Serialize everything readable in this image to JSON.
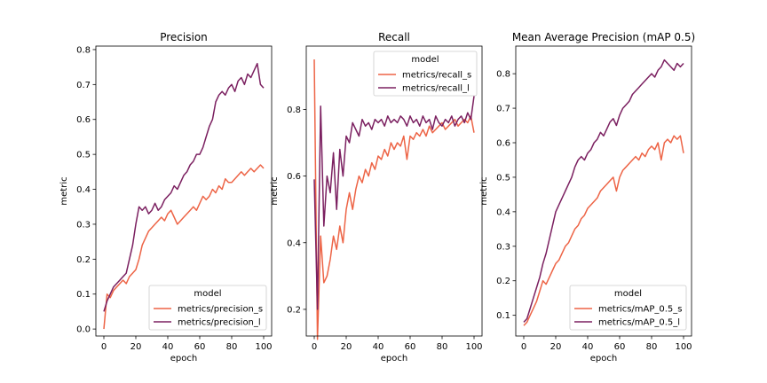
{
  "colors": {
    "small": "#ed6446",
    "large": "#7b2060"
  },
  "legend_title": "model",
  "chart_data": [
    {
      "type": "line",
      "title": "Precision",
      "xlabel": "epoch",
      "ylabel": "metric",
      "xlim": [
        -5,
        105
      ],
      "ylim": [
        -0.02,
        0.81
      ],
      "xticks": [
        0,
        20,
        40,
        60,
        80,
        100
      ],
      "yticks": [
        0.0,
        0.1,
        0.2,
        0.3,
        0.4,
        0.5,
        0.6,
        0.7,
        0.8
      ],
      "ytick_labels": [
        "0.0",
        "0.1",
        "0.2",
        "0.3",
        "0.4",
        "0.5",
        "0.6",
        "0.7",
        "0.8"
      ],
      "legend_position": "lower-right",
      "series": [
        {
          "name": "metrics/precision_s",
          "x": [
            0,
            2,
            4,
            6,
            8,
            10,
            12,
            14,
            16,
            18,
            20,
            22,
            24,
            26,
            28,
            30,
            32,
            34,
            36,
            38,
            40,
            42,
            44,
            46,
            48,
            50,
            52,
            54,
            56,
            58,
            60,
            62,
            64,
            66,
            68,
            70,
            72,
            74,
            76,
            78,
            80,
            82,
            84,
            86,
            88,
            90,
            92,
            94,
            96,
            98,
            100
          ],
          "values": [
            0.0,
            0.1,
            0.09,
            0.11,
            0.12,
            0.13,
            0.14,
            0.13,
            0.15,
            0.16,
            0.17,
            0.2,
            0.24,
            0.26,
            0.28,
            0.29,
            0.3,
            0.31,
            0.32,
            0.31,
            0.33,
            0.34,
            0.32,
            0.3,
            0.31,
            0.32,
            0.33,
            0.34,
            0.35,
            0.34,
            0.36,
            0.38,
            0.37,
            0.38,
            0.4,
            0.39,
            0.41,
            0.4,
            0.43,
            0.42,
            0.42,
            0.43,
            0.44,
            0.45,
            0.44,
            0.45,
            0.46,
            0.45,
            0.46,
            0.47,
            0.46
          ]
        },
        {
          "name": "metrics/precision_l",
          "x": [
            0,
            2,
            4,
            6,
            8,
            10,
            12,
            14,
            16,
            18,
            20,
            22,
            24,
            26,
            28,
            30,
            32,
            34,
            36,
            38,
            40,
            42,
            44,
            46,
            48,
            50,
            52,
            54,
            56,
            58,
            60,
            62,
            64,
            66,
            68,
            70,
            72,
            74,
            76,
            78,
            80,
            82,
            84,
            86,
            88,
            90,
            92,
            94,
            96,
            98,
            100
          ],
          "values": [
            0.05,
            0.08,
            0.1,
            0.12,
            0.13,
            0.14,
            0.15,
            0.16,
            0.2,
            0.24,
            0.3,
            0.35,
            0.34,
            0.35,
            0.33,
            0.34,
            0.36,
            0.34,
            0.35,
            0.37,
            0.38,
            0.39,
            0.41,
            0.4,
            0.42,
            0.44,
            0.45,
            0.47,
            0.48,
            0.5,
            0.5,
            0.52,
            0.55,
            0.58,
            0.6,
            0.65,
            0.67,
            0.68,
            0.67,
            0.69,
            0.7,
            0.68,
            0.71,
            0.72,
            0.7,
            0.73,
            0.72,
            0.74,
            0.76,
            0.7,
            0.69
          ]
        }
      ]
    },
    {
      "type": "line",
      "title": "Recall",
      "xlabel": "epoch",
      "ylabel": "metric",
      "xlim": [
        -5,
        105
      ],
      "ylim": [
        0.12,
        0.99
      ],
      "xticks": [
        0,
        20,
        40,
        60,
        80,
        100
      ],
      "yticks": [
        0.2,
        0.4,
        0.6,
        0.8
      ],
      "ytick_labels": [
        "0.2",
        "0.4",
        "0.6",
        "0.8"
      ],
      "legend_position": "upper-right",
      "series": [
        {
          "name": "metrics/recall_s",
          "x": [
            0,
            2,
            4,
            6,
            8,
            10,
            12,
            14,
            16,
            18,
            20,
            22,
            24,
            26,
            28,
            30,
            32,
            34,
            36,
            38,
            40,
            42,
            44,
            46,
            48,
            50,
            52,
            54,
            56,
            58,
            60,
            62,
            64,
            66,
            68,
            70,
            72,
            74,
            76,
            78,
            80,
            82,
            84,
            86,
            88,
            90,
            92,
            94,
            96,
            98,
            100
          ],
          "values": [
            0.95,
            0.11,
            0.42,
            0.28,
            0.3,
            0.35,
            0.42,
            0.38,
            0.45,
            0.4,
            0.5,
            0.55,
            0.5,
            0.56,
            0.6,
            0.58,
            0.62,
            0.6,
            0.64,
            0.62,
            0.66,
            0.65,
            0.68,
            0.66,
            0.7,
            0.68,
            0.7,
            0.69,
            0.72,
            0.65,
            0.72,
            0.71,
            0.73,
            0.72,
            0.74,
            0.72,
            0.75,
            0.73,
            0.74,
            0.75,
            0.76,
            0.74,
            0.75,
            0.76,
            0.77,
            0.75,
            0.76,
            0.77,
            0.76,
            0.78,
            0.73
          ]
        },
        {
          "name": "metrics/recall_l",
          "x": [
            0,
            2,
            4,
            6,
            8,
            10,
            12,
            14,
            16,
            18,
            20,
            22,
            24,
            26,
            28,
            30,
            32,
            34,
            36,
            38,
            40,
            42,
            44,
            46,
            48,
            50,
            52,
            54,
            56,
            58,
            60,
            62,
            64,
            66,
            68,
            70,
            72,
            74,
            76,
            78,
            80,
            82,
            84,
            86,
            88,
            90,
            92,
            94,
            96,
            98,
            100
          ],
          "values": [
            0.59,
            0.2,
            0.81,
            0.45,
            0.6,
            0.55,
            0.67,
            0.5,
            0.68,
            0.6,
            0.72,
            0.7,
            0.76,
            0.74,
            0.72,
            0.77,
            0.75,
            0.76,
            0.74,
            0.77,
            0.76,
            0.77,
            0.75,
            0.78,
            0.76,
            0.77,
            0.76,
            0.78,
            0.77,
            0.75,
            0.78,
            0.76,
            0.77,
            0.75,
            0.78,
            0.76,
            0.77,
            0.74,
            0.78,
            0.76,
            0.75,
            0.77,
            0.76,
            0.78,
            0.75,
            0.77,
            0.78,
            0.76,
            0.79,
            0.77,
            0.84
          ]
        }
      ]
    },
    {
      "type": "line",
      "title": "Mean Average Precision (mAP 0.5)",
      "xlabel": "epoch",
      "ylabel": "metric",
      "xlim": [
        -5,
        105
      ],
      "ylim": [
        0.04,
        0.88
      ],
      "xticks": [
        0,
        20,
        40,
        60,
        80,
        100
      ],
      "yticks": [
        0.1,
        0.2,
        0.3,
        0.4,
        0.5,
        0.6,
        0.7,
        0.8
      ],
      "ytick_labels": [
        "0.1",
        "0.2",
        "0.3",
        "0.4",
        "0.5",
        "0.6",
        "0.7",
        "0.8"
      ],
      "legend_position": "lower-right",
      "series": [
        {
          "name": "metrics/mAP_0.5_s",
          "x": [
            0,
            2,
            4,
            6,
            8,
            10,
            12,
            14,
            16,
            18,
            20,
            22,
            24,
            26,
            28,
            30,
            32,
            34,
            36,
            38,
            40,
            42,
            44,
            46,
            48,
            50,
            52,
            54,
            56,
            58,
            60,
            62,
            64,
            66,
            68,
            70,
            72,
            74,
            76,
            78,
            80,
            82,
            84,
            86,
            88,
            90,
            92,
            94,
            96,
            98,
            100
          ],
          "values": [
            0.07,
            0.08,
            0.1,
            0.12,
            0.14,
            0.17,
            0.2,
            0.19,
            0.21,
            0.23,
            0.25,
            0.26,
            0.28,
            0.3,
            0.31,
            0.33,
            0.35,
            0.36,
            0.38,
            0.39,
            0.41,
            0.42,
            0.43,
            0.44,
            0.46,
            0.47,
            0.48,
            0.49,
            0.5,
            0.46,
            0.5,
            0.52,
            0.53,
            0.54,
            0.55,
            0.56,
            0.55,
            0.57,
            0.56,
            0.58,
            0.59,
            0.58,
            0.6,
            0.55,
            0.6,
            0.61,
            0.6,
            0.62,
            0.61,
            0.62,
            0.57
          ]
        },
        {
          "name": "metrics/mAP_0.5_l",
          "x": [
            0,
            2,
            4,
            6,
            8,
            10,
            12,
            14,
            16,
            18,
            20,
            22,
            24,
            26,
            28,
            30,
            32,
            34,
            36,
            38,
            40,
            42,
            44,
            46,
            48,
            50,
            52,
            54,
            56,
            58,
            60,
            62,
            64,
            66,
            68,
            70,
            72,
            74,
            76,
            78,
            80,
            82,
            84,
            86,
            88,
            90,
            92,
            94,
            96,
            98,
            100
          ],
          "values": [
            0.08,
            0.09,
            0.12,
            0.15,
            0.18,
            0.21,
            0.25,
            0.28,
            0.32,
            0.36,
            0.4,
            0.42,
            0.44,
            0.46,
            0.48,
            0.5,
            0.53,
            0.55,
            0.56,
            0.55,
            0.57,
            0.58,
            0.6,
            0.61,
            0.63,
            0.62,
            0.64,
            0.66,
            0.67,
            0.65,
            0.68,
            0.7,
            0.71,
            0.72,
            0.74,
            0.75,
            0.76,
            0.77,
            0.78,
            0.79,
            0.8,
            0.79,
            0.81,
            0.82,
            0.84,
            0.83,
            0.82,
            0.81,
            0.83,
            0.82,
            0.83
          ]
        }
      ]
    }
  ]
}
